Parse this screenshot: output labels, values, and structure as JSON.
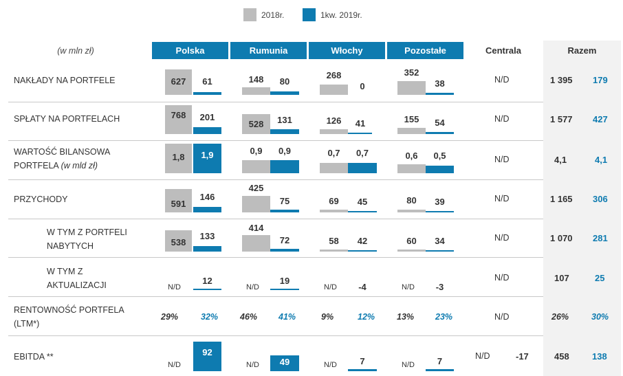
{
  "legend": {
    "label_2018": "2018r.",
    "label_q1_2019": "1kw. 2019r.",
    "color_2018": "#bdbdbd",
    "color_q1_2019": "#0e7bb0"
  },
  "header": {
    "unit": "(w mln zł)",
    "polska": "Polska",
    "rumunia": "Rumunia",
    "wlochy": "Włochy",
    "pozostale": "Pozostałe",
    "centrala": "Centrala",
    "razem": "Razem"
  },
  "nd": "N/D",
  "rows": {
    "naklady": {
      "label": "NAKŁADY NA PORTFELE",
      "polska": [
        "627",
        "61"
      ],
      "rumunia": [
        "148",
        "80"
      ],
      "wlochy": [
        "268",
        "0"
      ],
      "pozostale": [
        "352",
        "38"
      ],
      "centrala": "N/D",
      "razem": [
        "1 395",
        "179"
      ]
    },
    "splaty": {
      "label": "SPŁATY NA PORTFELACH",
      "polska": [
        "768",
        "201"
      ],
      "rumunia": [
        "528",
        "131"
      ],
      "wlochy": [
        "126",
        "41"
      ],
      "pozostale": [
        "155",
        "54"
      ],
      "centrala": "N/D",
      "razem": [
        "1 577",
        "427"
      ]
    },
    "wartosc": {
      "label_line1": "WARTOŚĆ BILANSOWA",
      "label_line2": "PORTFELA",
      "label_unit": "(w mld zł)",
      "polska": [
        "1,8",
        "1,9"
      ],
      "rumunia": [
        "0,9",
        "0,9"
      ],
      "wlochy": [
        "0,7",
        "0,7"
      ],
      "pozostale": [
        "0,6",
        "0,5"
      ],
      "centrala": "N/D",
      "razem": [
        "4,1",
        "4,1"
      ]
    },
    "przychody": {
      "label": "PRZYCHODY",
      "polska": [
        "591",
        "146"
      ],
      "rumunia": [
        "425",
        "75"
      ],
      "wlochy": [
        "69",
        "45"
      ],
      "pozostale": [
        "80",
        "39"
      ],
      "centrala": "N/D",
      "razem": [
        "1 165",
        "306"
      ]
    },
    "nabyte": {
      "label_line1": "W TYM Z PORTFELI",
      "label_line2": "NABYTYCH",
      "polska": [
        "538",
        "133"
      ],
      "rumunia": [
        "414",
        "72"
      ],
      "wlochy": [
        "58",
        "42"
      ],
      "pozostale": [
        "60",
        "34"
      ],
      "centrala": "N/D",
      "razem": [
        "1 070",
        "281"
      ]
    },
    "aktualizacja": {
      "label_line1": "W TYM Z",
      "label_line2": "AKTUALIZACJI",
      "polska": [
        "N/D",
        "12"
      ],
      "rumunia": [
        "N/D",
        "19"
      ],
      "wlochy": [
        "N/D",
        "-4"
      ],
      "pozostale": [
        "N/D",
        "-3"
      ],
      "centrala": "N/D",
      "razem": [
        "107",
        "25"
      ]
    },
    "rentownosc": {
      "label_line1": "RENTOWNOŚĆ PORTFELA",
      "label_line2": "(LTM*)",
      "polska": [
        "29%",
        "32%"
      ],
      "rumunia": [
        "46%",
        "41%"
      ],
      "wlochy": [
        "9%",
        "12%"
      ],
      "pozostale": [
        "13%",
        "23%"
      ],
      "centrala": "N/D",
      "razem": [
        "26%",
        "30%"
      ]
    },
    "ebitda": {
      "label": "EBITDA **",
      "polska": [
        "N/D",
        "92"
      ],
      "rumunia": [
        "N/D",
        "49"
      ],
      "wlochy": [
        "N/D",
        "7"
      ],
      "pozostale": [
        "N/D",
        "7"
      ],
      "centrala": [
        "N/D",
        "-17"
      ],
      "razem": [
        "458",
        "138"
      ]
    }
  }
}
